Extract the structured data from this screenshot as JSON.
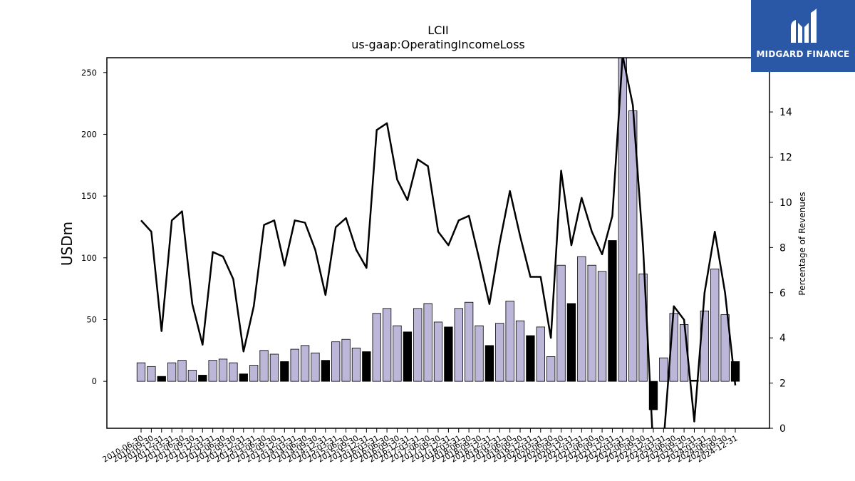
{
  "chart_data": {
    "type": "bar",
    "title": "LCII",
    "subtitle": "us-gaap:OperatingIncomeLoss",
    "ylabel": "USDm",
    "y2label": "Percentage of Revenues",
    "ylim": [
      -38,
      262
    ],
    "y2lim": [
      0,
      16.4
    ],
    "yticks": [
      0,
      50,
      100,
      150,
      200,
      250
    ],
    "y2ticks": [
      0,
      2,
      4,
      6,
      8,
      10,
      12,
      14,
      16
    ],
    "categories": [
      "2010-06-30",
      "2010-09-30",
      "2010-12-31",
      "2011-03-31",
      "2011-06-30",
      "2011-09-30",
      "2011-12-31",
      "2012-03-31",
      "2012-06-30",
      "2012-09-30",
      "2012-12-31",
      "2013-03-31",
      "2013-06-30",
      "2013-09-30",
      "2013-12-31",
      "2014-03-31",
      "2014-06-30",
      "2014-09-30",
      "2014-12-31",
      "2015-03-31",
      "2015-06-30",
      "2015-09-30",
      "2015-12-31",
      "2016-03-31",
      "2016-06-30",
      "2016-09-30",
      "2016-12-31",
      "2017-03-31",
      "2017-06-30",
      "2017-09-30",
      "2017-12-31",
      "2018-03-31",
      "2018-06-30",
      "2018-09-30",
      "2018-12-31",
      "2019-03-31",
      "2019-06-30",
      "2019-09-30",
      "2019-12-31",
      "2020-03-31",
      "2020-06-30",
      "2020-09-30",
      "2020-12-31",
      "2021-03-31",
      "2021-06-30",
      "2021-09-30",
      "2021-12-31",
      "2022-03-31",
      "2022-06-30",
      "2022-09-30",
      "2022-12-31",
      "2023-03-31",
      "2023-06-30",
      "2023-09-30",
      "2023-12-31",
      "2024-03-31",
      "2024-06-30",
      "2024-09-30",
      "2024-12-31"
    ],
    "series": [
      {
        "kind": "bar",
        "axis": "left",
        "values": [
          15,
          12,
          4,
          15,
          17,
          9,
          5,
          17,
          18,
          15,
          6,
          13,
          25,
          22,
          16,
          26,
          29,
          23,
          17,
          32,
          34,
          27,
          24,
          55,
          59,
          45,
          40,
          59,
          63,
          48,
          44,
          59,
          64,
          45,
          29,
          47,
          65,
          49,
          37,
          44,
          20,
          94,
          63,
          101,
          94,
          89,
          114,
          262,
          219,
          87,
          -23,
          19,
          55,
          46,
          1,
          57,
          91,
          54,
          16
        ],
        "highlight_indices": [
          2,
          6,
          10,
          14,
          18,
          22,
          26,
          30,
          34,
          38,
          42,
          46,
          50,
          54,
          58
        ],
        "fill": "#bcb7d9",
        "highlight_fill": "#000000"
      },
      {
        "kind": "line",
        "axis": "right",
        "values": [
          9.2,
          8.7,
          4.3,
          9.2,
          9.6,
          5.5,
          3.7,
          7.8,
          7.6,
          6.6,
          3.4,
          5.4,
          9.0,
          9.2,
          7.2,
          9.2,
          9.1,
          7.9,
          5.9,
          8.9,
          9.3,
          7.9,
          7.1,
          13.2,
          13.5,
          11.0,
          10.1,
          11.9,
          11.6,
          8.7,
          8.1,
          9.2,
          9.4,
          7.5,
          5.5,
          8.2,
          10.5,
          8.5,
          6.7,
          6.7,
          4.0,
          11.4,
          8.1,
          10.2,
          8.7,
          7.7,
          9.4,
          16.5,
          14.3,
          8.0,
          -1.0,
          -0.6,
          5.4,
          4.8,
          0.3,
          6.0,
          8.7,
          6.0,
          1.9
        ],
        "color": "#000000"
      }
    ]
  },
  "logo": {
    "text": "MIDGARD FINANCE"
  }
}
